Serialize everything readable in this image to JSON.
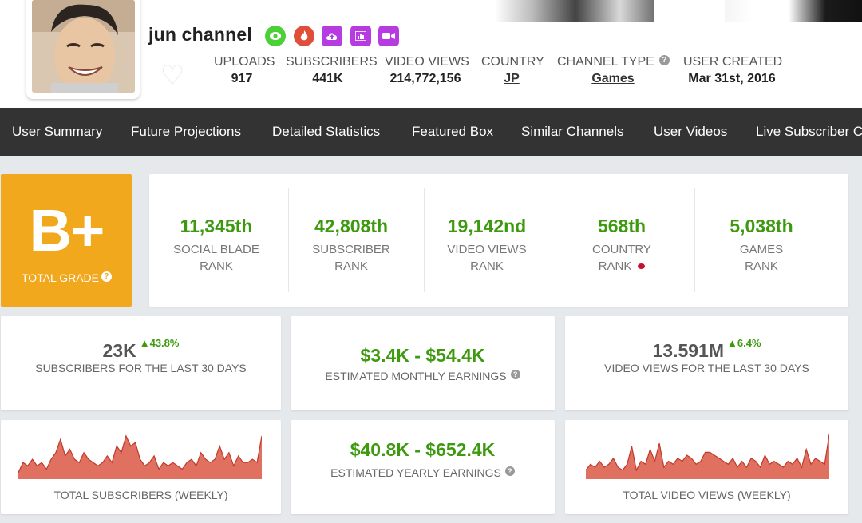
{
  "channel": {
    "name": "jun channel",
    "badges": [
      {
        "icon": "eye-icon",
        "color": "#4cd038"
      },
      {
        "icon": "fire-icon",
        "color": "#e04e3a"
      },
      {
        "icon": "cloud-upload-icon",
        "color": "#b63ce1"
      },
      {
        "icon": "bar-chart-icon",
        "color": "#b63ce1"
      },
      {
        "icon": "video-camera-icon",
        "color": "#b63ce1"
      }
    ]
  },
  "header_stats": {
    "uploads_label": "UPLOADS",
    "uploads": "917",
    "subscribers_label": "SUBSCRIBERS",
    "subscribers": "441K",
    "video_views_label": "VIDEO VIEWS",
    "video_views": "214,772,156",
    "country_label": "COUNTRY",
    "country": "JP",
    "channel_type_label": "CHANNEL TYPE",
    "channel_type": "Games",
    "user_created_label": "USER CREATED",
    "user_created": "Mar 31st, 2016"
  },
  "nav": [
    "User Summary",
    "Future Projections",
    "Detailed Statistics",
    "Featured Box",
    "Similar Channels",
    "User Videos",
    "Live Subscriber C"
  ],
  "grade": {
    "value": "B+",
    "label": "TOTAL GRADE"
  },
  "ranks": [
    {
      "value": "11,345th",
      "line1": "SOCIAL BLADE",
      "line2": "RANK"
    },
    {
      "value": "42,808th",
      "line1": "SUBSCRIBER",
      "line2": "RANK"
    },
    {
      "value": "19,142nd",
      "line1": "VIDEO VIEWS",
      "line2": "RANK"
    },
    {
      "value": "568th",
      "line1": "COUNTRY",
      "line2": "RANK"
    },
    {
      "value": "5,038th",
      "line1": "GAMES",
      "line2": "RANK"
    }
  ],
  "subs30": {
    "value": "23K",
    "change": "43.8%",
    "label": "SUBSCRIBERS FOR THE LAST 30 DAYS"
  },
  "monthly": {
    "value": "$3.4K - $54.4K",
    "label": "ESTIMATED MONTHLY EARNINGS"
  },
  "views30": {
    "value": "13.591M",
    "change": "6.4%",
    "label": "VIDEO VIEWS FOR THE LAST 30 DAYS"
  },
  "yearly": {
    "value": "$40.8K - $652.4K",
    "label": "ESTIMATED YEARLY EARNINGS"
  },
  "charts_labels": {
    "subs": "TOTAL SUBSCRIBERS (WEEKLY)",
    "views": "TOTAL VIDEO VIEWS (WEEKLY)"
  },
  "colors": {
    "accent_green": "#3d9a0f",
    "grade_orange": "#f2a81d",
    "nav_bg": "#333333",
    "chart_fill": "#e07060",
    "chart_line": "#c0392b"
  },
  "chart_data": [
    {
      "type": "area",
      "title": "TOTAL SUBSCRIBERS (WEEKLY)",
      "values": [
        2,
        5,
        4,
        6,
        4,
        5,
        3,
        6,
        8,
        12,
        7,
        9,
        6,
        5,
        8,
        6,
        5,
        4,
        5,
        7,
        5,
        10,
        8,
        13,
        10,
        11,
        6,
        4,
        5,
        7,
        3,
        5,
        4,
        5,
        4,
        3,
        5,
        6,
        4,
        8,
        6,
        5,
        6,
        10,
        6,
        8,
        4,
        7,
        5,
        5,
        6,
        5,
        13
      ]
    },
    {
      "type": "area",
      "title": "TOTAL VIDEO VIEWS (WEEKLY)",
      "values": [
        3,
        5,
        4,
        6,
        4,
        5,
        7,
        4,
        3,
        5,
        11,
        3,
        6,
        5,
        10,
        6,
        12,
        4,
        6,
        5,
        7,
        6,
        8,
        7,
        5,
        6,
        9,
        9,
        8,
        7,
        6,
        5,
        7,
        4,
        6,
        4,
        7,
        6,
        4,
        8,
        5,
        6,
        5,
        4,
        6,
        5,
        7,
        4,
        10,
        5,
        7,
        6,
        5,
        15
      ]
    }
  ]
}
